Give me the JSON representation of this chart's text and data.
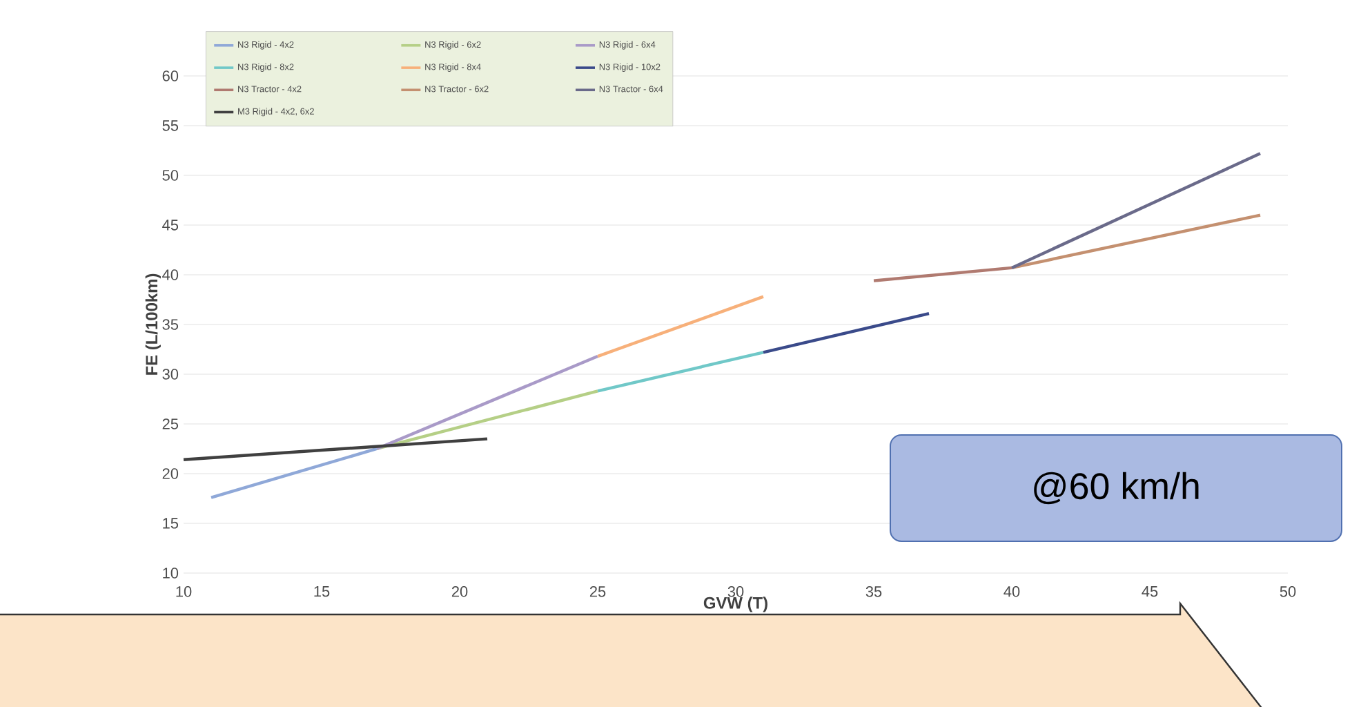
{
  "chart_data": {
    "type": "line",
    "xlabel": "GVW (T)",
    "ylabel": "FE (L/100km)",
    "xlim": [
      10,
      50
    ],
    "ylim": [
      10,
      60
    ],
    "xticks": [
      10,
      15,
      20,
      25,
      30,
      35,
      40,
      45,
      50
    ],
    "yticks": [
      10,
      15,
      20,
      25,
      30,
      35,
      40,
      45,
      50,
      55,
      60
    ],
    "grid": "y",
    "legend": "top left",
    "line_style": "solid",
    "series": [
      {
        "name": "N3 Rigid - 4x2",
        "color": "#8fa8d8",
        "x": [
          11,
          17
        ],
        "values": [
          17.6,
          22.5
        ]
      },
      {
        "name": "N3 Rigid - 6x2",
        "color": "#b5cf86",
        "x": [
          17,
          25
        ],
        "values": [
          22.5,
          28.3
        ]
      },
      {
        "name": "N3 Rigid - 6x4",
        "color": "#a99ac8",
        "x": [
          17,
          25
        ],
        "values": [
          22.5,
          31.8
        ]
      },
      {
        "name": "N3 Rigid - 8x2",
        "color": "#70c8c8",
        "x": [
          25,
          31
        ],
        "values": [
          28.3,
          32.2
        ]
      },
      {
        "name": "N3 Rigid - 8x4",
        "color": "#f7b07a",
        "x": [
          25,
          31
        ],
        "values": [
          31.8,
          37.8
        ]
      },
      {
        "name": "N3 Rigid - 10x2",
        "color": "#3a4a8a",
        "x": [
          31,
          37
        ],
        "values": [
          32.2,
          36.1
        ]
      },
      {
        "name": "N3 Tractor - 4x2",
        "color": "#b07a70",
        "x": [
          35,
          40
        ],
        "values": [
          39.4,
          40.7
        ]
      },
      {
        "name": "N3 Tractor - 6x2",
        "color": "#c49070",
        "x": [
          40,
          49
        ],
        "values": [
          40.7,
          46.0
        ]
      },
      {
        "name": "N3 Tractor - 6x4",
        "color": "#6a6a8a",
        "x": [
          40,
          49
        ],
        "values": [
          40.7,
          52.2
        ]
      },
      {
        "name": "M3 Rigid - 4x2, 6x2",
        "color": "#404040",
        "x": [
          10,
          21
        ],
        "values": [
          21.4,
          23.5
        ]
      }
    ],
    "annotations": [
      "@60 km/h"
    ]
  }
}
